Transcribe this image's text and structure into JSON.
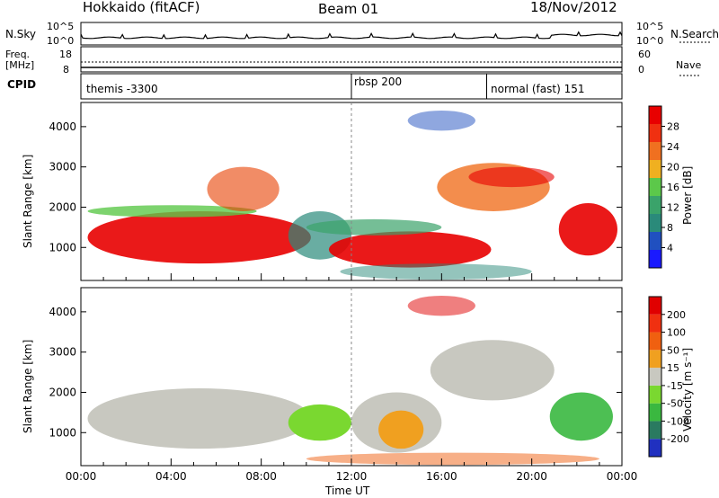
{
  "header": {
    "station": "Hokkaido (fitACF)",
    "beam": "Beam 01",
    "date": "18/Nov/2012"
  },
  "top_strips": {
    "nsky_label": "N.Sky",
    "nsky_ticks": [
      "10^5",
      "10^0"
    ],
    "nsearch_ticks": [
      "10^5",
      "10^0"
    ],
    "nsearch_label": "N.Search",
    "freq_label_1": "Freq.",
    "freq_label_2": "[MHz]",
    "freq_ticks": [
      "18",
      "8"
    ],
    "nave_ticks": [
      "60",
      "0"
    ],
    "nave_label": "Nave",
    "cpid_label": "CPID",
    "cpid_segments": [
      {
        "name": "themis -3300",
        "start_hour": 0
      },
      {
        "name": "rbsp 200",
        "start_hour": 12
      },
      {
        "name": "normal (fast) 151",
        "start_hour": 18
      }
    ]
  },
  "chart_data": [
    {
      "type": "heatmap",
      "name": "power",
      "ylabel": "Slant Range [km]",
      "xlim_hours": [
        0,
        24
      ],
      "ylim": [
        180,
        4600
      ],
      "yticks": [
        "1000",
        "2000",
        "3000",
        "4000"
      ],
      "colorbar_label": "Power [dB]",
      "colorbar_ticks": [
        "28",
        "24",
        "20",
        "16",
        "12",
        "8",
        "4"
      ],
      "colorbar_colors": [
        "#1a1aff",
        "#2050c0",
        "#2a8a7a",
        "#3aa36a",
        "#5cc84a",
        "#f0b020",
        "#f07020",
        "#f03010",
        "#e80000"
      ]
    },
    {
      "type": "heatmap",
      "name": "velocity",
      "ylabel": "Slant Range [km]",
      "xlabel": "Time UT",
      "xlim_hours": [
        0,
        24
      ],
      "ylim": [
        180,
        4600
      ],
      "yticks": [
        "1000",
        "2000",
        "3000",
        "4000"
      ],
      "xticks": [
        "00:00",
        "04:00",
        "08:00",
        "12:00",
        "16:00",
        "20:00",
        "00:00"
      ],
      "colorbar_label": "Velocity [m s⁻¹]",
      "colorbar_ticks": [
        "200",
        "100",
        "50",
        "15",
        "-15",
        "-50",
        "-100",
        "-200"
      ],
      "colorbar_colors": [
        "#2030c0",
        "#2a7a60",
        "#3ab840",
        "#7ad830",
        "#c8c8c0",
        "#f0a020",
        "#f06010",
        "#f03010",
        "#e00000"
      ]
    }
  ]
}
